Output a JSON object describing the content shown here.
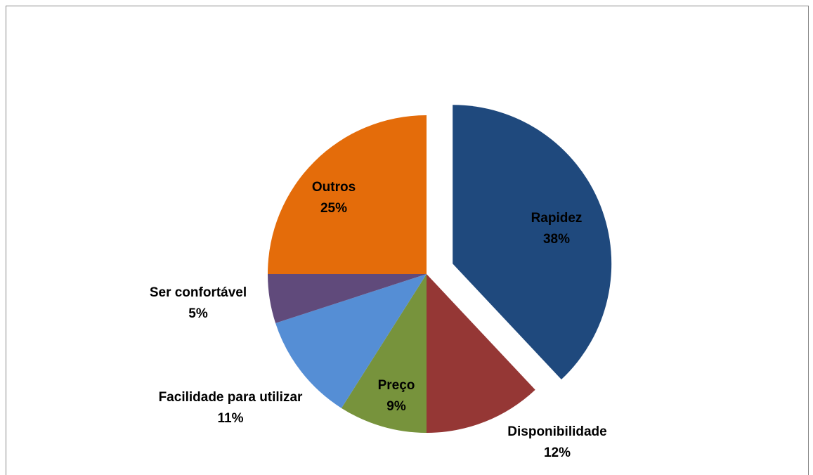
{
  "chart_data": {
    "type": "pie",
    "categories": [
      "Rapidez",
      "Disponibilidade",
      "Preço",
      "Facilidade para utilizar",
      "Ser confortável",
      "Outros"
    ],
    "values": [
      38,
      12,
      9,
      11,
      5,
      25
    ],
    "value_labels": [
      "38%",
      "12%",
      "9%",
      "11%",
      "5%",
      "25%"
    ],
    "colors": [
      "#1f497d",
      "#953735",
      "#77933c",
      "#558ed5",
      "#604a7b",
      "#e46c0a"
    ],
    "explode": [
      true,
      false,
      false,
      false,
      false,
      false
    ]
  }
}
